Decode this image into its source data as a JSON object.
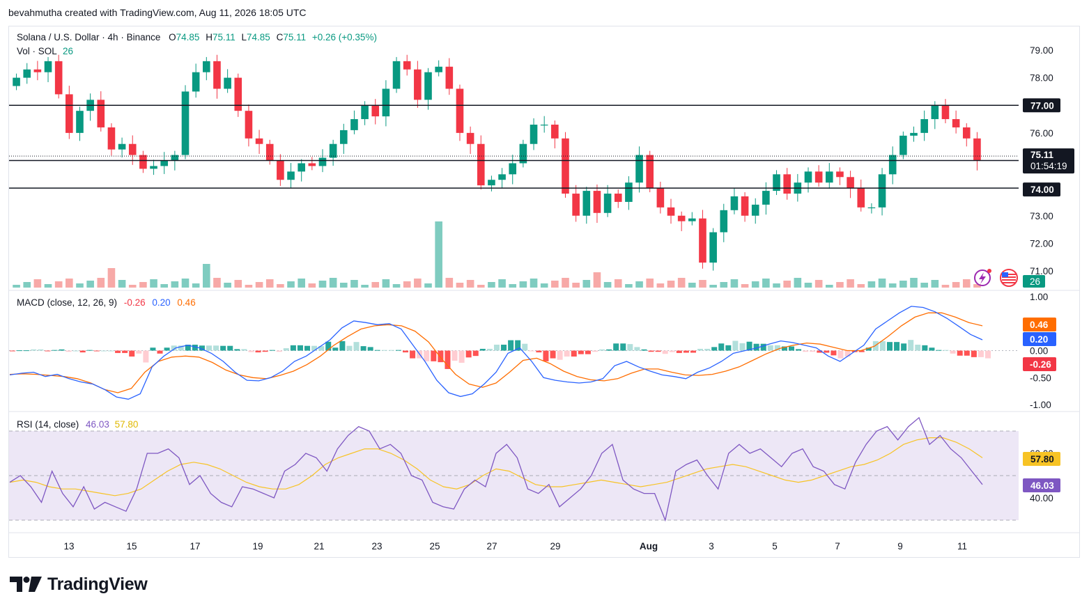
{
  "credit": "bevahmutha created with TradingView.com, Aug 11, 2026 18:05 UTC",
  "logo_text": "TradingView",
  "header": {
    "symbol": "Solana / U.S. Dollar · 4h · Binance",
    "o_label": "O",
    "o_value": "74.85",
    "h_label": "H",
    "h_value": "75.11",
    "l_label": "L",
    "l_value": "74.85",
    "c_label": "C",
    "c_value": "75.11",
    "change": "+0.26 (+0.35%)",
    "vol_label": "Vol · SOL",
    "vol_value": "26"
  },
  "macd_legend": {
    "label": "MACD (close, 12, 26, 9)",
    "hist": "-0.26",
    "macd": "0.20",
    "signal": "0.46"
  },
  "rsi_legend": {
    "label": "RSI (14, close)",
    "rsi": "46.03",
    "ma": "57.80"
  },
  "colors": {
    "up": "#089981",
    "down": "#f23645",
    "macd_line": "#2962ff",
    "signal_line": "#ff6d00",
    "rsi_line": "#7e57c2",
    "rsi_ma": "#f7c325",
    "rsi_band": "#ede7f6"
  },
  "icons": [
    "lightning-icon",
    "us-flag-icon"
  ],
  "chart_data": [
    {
      "type": "candlestick",
      "title": "Solana / U.S. Dollar · 4h · Binance",
      "y_ticks": [
        "79.00",
        "78.00",
        "77.00",
        "76.00",
        "75.00",
        "74.00",
        "73.00",
        "72.00",
        "71.00"
      ],
      "ylim": [
        70.4,
        79.9
      ],
      "x_ticks": [
        "13",
        "15",
        "17",
        "19",
        "21",
        "23",
        "25",
        "27",
        "29",
        "Aug",
        "3",
        "5",
        "7",
        "9",
        "11"
      ],
      "horizontal_levels": [
        77.0,
        75.0,
        74.0
      ],
      "price_line": 75.11,
      "price_label": "75.11",
      "countdown": "01:54:19",
      "level_labels": [
        "77.00",
        "75.00",
        "74.00"
      ],
      "volume_label": "26",
      "close_series": [
        78.0,
        78.3,
        78.2,
        78.6,
        77.4,
        76.0,
        76.8,
        77.2,
        76.2,
        75.4,
        75.6,
        75.2,
        74.7,
        74.8,
        75.0,
        75.2,
        77.5,
        78.2,
        78.6,
        77.6,
        78.0,
        76.8,
        75.8,
        75.6,
        75.0,
        74.3,
        74.6,
        74.9,
        74.8,
        75.1,
        75.6,
        76.1,
        76.5,
        77.0,
        76.6,
        77.6,
        78.6,
        78.3,
        77.2,
        78.2,
        78.4,
        77.6,
        76.0,
        75.6,
        74.1,
        74.3,
        74.5,
        74.9,
        75.6,
        76.3,
        76.3,
        75.8,
        73.8,
        73.0,
        73.9,
        73.1,
        73.8,
        73.5,
        74.2,
        75.2,
        74.0,
        73.3,
        73.0,
        72.8,
        72.9,
        71.3,
        72.4,
        73.2,
        73.7,
        73.0,
        73.4,
        73.9,
        74.5,
        73.8,
        74.2,
        74.6,
        74.2,
        74.6,
        74.4,
        74.0,
        73.3,
        73.3,
        74.5,
        75.2,
        75.9,
        76.0,
        76.5,
        77.0,
        76.5,
        76.2,
        75.8,
        75.0
      ],
      "ohlc_last": {
        "open": 74.85,
        "high": 75.11,
        "low": 74.85,
        "close": 75.11
      }
    },
    {
      "type": "line",
      "title": "MACD (close, 12, 26, 9)",
      "y_ticks": [
        "1.00",
        "0.50",
        "0.00",
        "-0.50",
        "-1.00"
      ],
      "ylim": [
        -1.07,
        1.07
      ],
      "last_labels": {
        "signal": "0.46",
        "macd": "0.20",
        "hist": "-0.26"
      },
      "series": [
        {
          "values": [
            -0.45,
            -0.42,
            -0.4,
            -0.48,
            -0.44,
            -0.52,
            -0.58,
            -0.62,
            -0.72,
            -0.86,
            -0.9,
            -0.8,
            -0.3,
            -0.1,
            0.05,
            0.1,
            0.05,
            -0.05,
            -0.2,
            -0.4,
            -0.55,
            -0.56,
            -0.5,
            -0.38,
            -0.2,
            -0.1,
            0.05,
            0.2,
            0.42,
            0.55,
            0.52,
            0.48,
            0.5,
            0.4,
            0.1,
            -0.2,
            -0.55,
            -0.78,
            -0.85,
            -0.8,
            -0.62,
            -0.4,
            -0.05,
            0.05,
            -0.2,
            -0.5,
            -0.55,
            -0.58,
            -0.6,
            -0.58,
            -0.52,
            -0.28,
            -0.2,
            -0.3,
            -0.38,
            -0.45,
            -0.48,
            -0.52,
            -0.4,
            -0.32,
            -0.2,
            -0.05,
            0.0,
            0.05,
            0.12,
            0.18,
            0.15,
            0.1,
            0.05,
            -0.1,
            -0.2,
            -0.05,
            0.1,
            0.4,
            0.55,
            0.7,
            0.82,
            0.8,
            0.72,
            0.6,
            0.45,
            0.3,
            0.2
          ]
        },
        {
          "values": [
            -0.44,
            -0.43,
            -0.44,
            -0.46,
            -0.48,
            -0.52,
            -0.6,
            -0.72,
            -0.78,
            -0.7,
            -0.4,
            -0.2,
            -0.12,
            -0.1,
            -0.12,
            -0.22,
            -0.36,
            -0.45,
            -0.5,
            -0.52,
            -0.46,
            -0.38,
            -0.26,
            -0.1,
            0.1,
            0.26,
            0.4,
            0.46,
            0.48,
            0.46,
            0.36,
            0.16,
            -0.16,
            -0.44,
            -0.62,
            -0.68,
            -0.6,
            -0.4,
            -0.18,
            -0.14,
            -0.24,
            -0.38,
            -0.48,
            -0.54,
            -0.56,
            -0.52,
            -0.42,
            -0.34,
            -0.34,
            -0.4,
            -0.45,
            -0.46,
            -0.44,
            -0.38,
            -0.3,
            -0.18,
            -0.06,
            0.04,
            0.1,
            0.14,
            0.12,
            0.06,
            0.0,
            0.0,
            0.08,
            0.26,
            0.46,
            0.62,
            0.7,
            0.7,
            0.62,
            0.52,
            0.46
          ]
        }
      ],
      "histogram_sign_sequence": "mixed positive/negative bars around zero"
    },
    {
      "type": "line",
      "title": "RSI (14, close)",
      "y_ticks": [
        "60.00",
        "40.00"
      ],
      "ylim": [
        24,
        82
      ],
      "band": [
        30,
        70
      ],
      "last_labels": {
        "ma": "57.80",
        "rsi": "46.03"
      },
      "series": [
        {
          "values": [
            47,
            50,
            45,
            38,
            52,
            42,
            36,
            45,
            35,
            38,
            36,
            34,
            44,
            60,
            60,
            62,
            58,
            46,
            50,
            42,
            38,
            36,
            45,
            44,
            42,
            40,
            52,
            55,
            60,
            58,
            52,
            62,
            68,
            72,
            70,
            62,
            64,
            60,
            50,
            48,
            38,
            36,
            35,
            44,
            48,
            45,
            60,
            64,
            58,
            44,
            42,
            46,
            36,
            40,
            44,
            50,
            60,
            64,
            48,
            44,
            42,
            42,
            30,
            52,
            55,
            57,
            50,
            44,
            60,
            64,
            60,
            62,
            58,
            54,
            60,
            62,
            54,
            52,
            46,
            44,
            56,
            64,
            70,
            72,
            66,
            72,
            76,
            64,
            68,
            62,
            58,
            52,
            46
          ]
        },
        {
          "values": [
            47,
            48,
            47,
            45,
            44,
            44,
            43,
            42,
            41,
            42,
            44,
            48,
            52,
            55,
            56,
            55,
            53,
            50,
            47,
            45,
            44,
            44,
            46,
            50,
            55,
            58,
            60,
            62,
            62,
            60,
            57,
            53,
            48,
            45,
            44,
            46,
            50,
            53,
            52,
            49,
            46,
            45,
            45,
            46,
            47,
            48,
            47,
            46,
            45,
            46,
            47,
            49,
            51,
            53,
            54,
            55,
            54,
            52,
            50,
            48,
            47,
            48,
            50,
            52,
            54,
            55,
            57,
            60,
            64,
            66,
            67,
            67,
            65,
            62,
            58
          ]
        }
      ]
    }
  ]
}
